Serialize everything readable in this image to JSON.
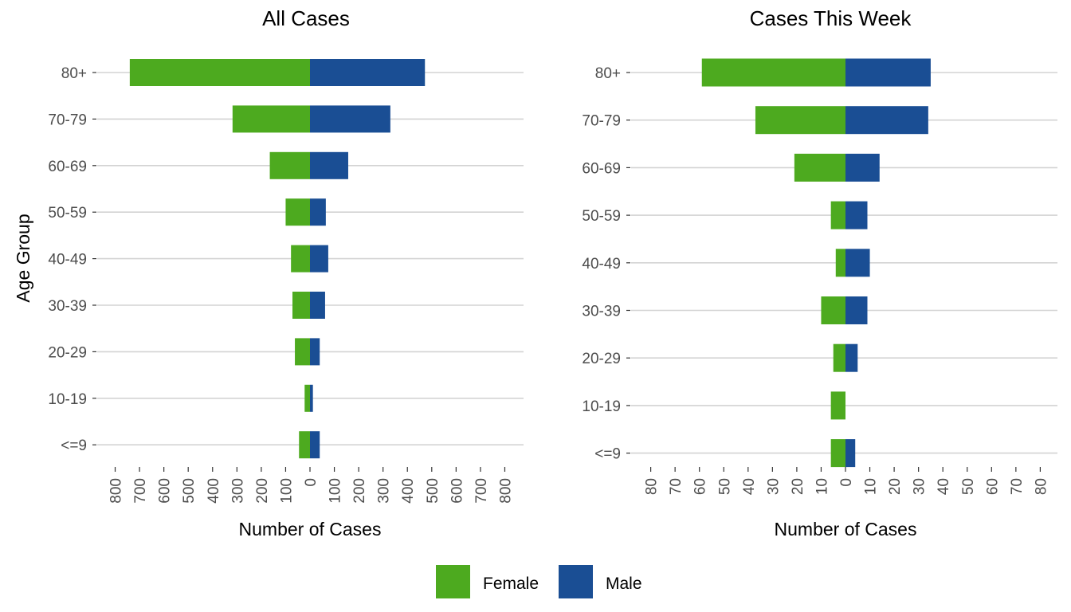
{
  "colors": {
    "female": "#4daa1f",
    "male": "#1a4e94",
    "grid": "#d3d3d3",
    "tick_text": "#4d4d4d"
  },
  "y_axis_title": "Age Group",
  "legend": {
    "position": "bottom",
    "entries": [
      {
        "key": "female",
        "label": "Female"
      },
      {
        "key": "male",
        "label": "Male"
      }
    ]
  },
  "chart_data": [
    {
      "type": "bar",
      "orientation": "horizontal",
      "title": "All Cases",
      "xlabel": "Number of Cases",
      "ylabel": "Age Group",
      "categories": [
        "80+",
        "70-79",
        "60-69",
        "50-59",
        "40-49",
        "30-39",
        "20-29",
        "10-19",
        "<=9"
      ],
      "series": [
        {
          "name": "Female",
          "values": [
            740,
            318,
            165,
            100,
            78,
            72,
            62,
            22,
            45
          ]
        },
        {
          "name": "Male",
          "values": [
            472,
            330,
            157,
            65,
            75,
            62,
            40,
            12,
            40
          ]
        }
      ],
      "xlim": [
        -800,
        800
      ],
      "x_ticks": [
        -800,
        -700,
        -600,
        -500,
        -400,
        -300,
        -200,
        -100,
        0,
        100,
        200,
        300,
        400,
        500,
        600,
        700,
        800
      ],
      "x_tick_labels": [
        "800",
        "700",
        "600",
        "500",
        "400",
        "300",
        "200",
        "100",
        "0",
        "100",
        "200",
        "300",
        "400",
        "500",
        "600",
        "700",
        "800"
      ],
      "grid": true
    },
    {
      "type": "bar",
      "orientation": "horizontal",
      "title": "Cases This Week",
      "xlabel": "Number of Cases",
      "ylabel": "Age Group",
      "categories": [
        "80+",
        "70-79",
        "60-69",
        "50-59",
        "40-49",
        "30-39",
        "20-29",
        "10-19",
        "<=9"
      ],
      "series": [
        {
          "name": "Female",
          "values": [
            59,
            37,
            21,
            6,
            4,
            10,
            5,
            6,
            6
          ]
        },
        {
          "name": "Male",
          "values": [
            35,
            34,
            14,
            9,
            10,
            9,
            5,
            0,
            4
          ]
        }
      ],
      "xlim": [
        -80,
        80
      ],
      "x_ticks": [
        -80,
        -70,
        -60,
        -50,
        -40,
        -30,
        -20,
        -10,
        0,
        10,
        20,
        30,
        40,
        50,
        60,
        70,
        80
      ],
      "x_tick_labels": [
        "80",
        "70",
        "60",
        "50",
        "40",
        "30",
        "20",
        "10",
        "0",
        "10",
        "20",
        "30",
        "40",
        "50",
        "60",
        "70",
        "80"
      ],
      "grid": true
    }
  ]
}
